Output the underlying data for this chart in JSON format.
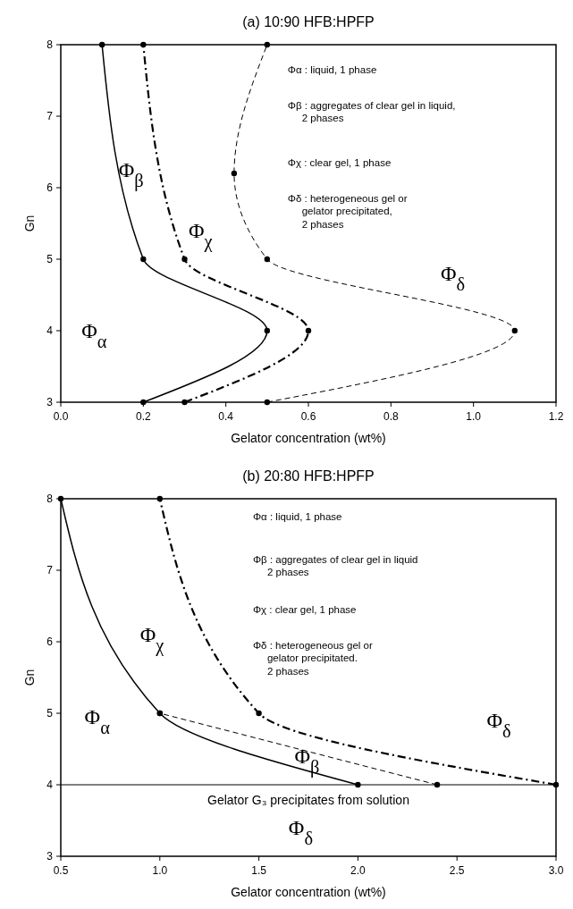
{
  "chart_data": [
    {
      "type": "line",
      "title": "(a) 10:90 HFB:HPFP",
      "xlabel": "Gelator concentration (wt%)",
      "ylabel": "Gn",
      "xlim": [
        0,
        1.2
      ],
      "xticks": [
        {
          "value": 0,
          "label": "0.0"
        },
        0.2,
        0.4,
        0.6,
        0.8,
        {
          "value": 1,
          "label": "1.0"
        },
        1.2
      ],
      "ylim": [
        3,
        8
      ],
      "yticks": [
        3,
        4,
        5,
        6,
        7,
        8
      ],
      "grid": false,
      "marker": "circle",
      "series": [
        {
          "color": "#000000",
          "line_style": "solid",
          "x": [
            0.2,
            0.5,
            0.2,
            0.1
          ],
          "values": [
            3,
            4,
            5,
            8
          ]
        },
        {
          "color": "#000000",
          "line_style": "dashdot",
          "x": [
            0.3,
            0.6,
            0.3,
            0.2
          ],
          "values": [
            3,
            4,
            5,
            8
          ]
        },
        {
          "color": "#000000",
          "line_style": "dashed",
          "x": [
            0.5,
            1.1,
            0.5,
            0.42,
            0.5
          ],
          "values": [
            3,
            4,
            5,
            6.2,
            8
          ]
        }
      ],
      "annotations": [
        "Φ$_{α}$",
        "Φ$_{β}$",
        "Φ$_{χ}$",
        "Φ$_{δ}$",
        "Φα  : liquid, 1 phase",
        "Φβ : aggregates of clear gel in liquid,\n2 phases",
        "Φχ : clear  gel, 1 phase",
        "Φδ : heterogeneous gel or\ngelator precipitated,\n2 phases"
      ]
    },
    {
      "type": "line",
      "title": "(b)  20:80 HFB:HPFP",
      "xlabel": "Gelator concentration (wt%)",
      "ylabel": "Gn",
      "xlim": [
        0.5,
        3.0
      ],
      "xticks": [
        0.5,
        {
          "value": 1,
          "label": "1.0"
        },
        1.5,
        {
          "value": 2,
          "label": "2.0"
        },
        2.5,
        {
          "value": 3,
          "label": "3.0"
        }
      ],
      "ylim": [
        3,
        8
      ],
      "yticks": [
        3,
        4,
        5,
        6,
        7,
        8
      ],
      "grid": false,
      "marker": "circle",
      "series": [
        {
          "color": "#000000",
          "line_style": "solid",
          "x": [
            2.0,
            1.0,
            0.5
          ],
          "values": [
            4,
            5,
            8
          ]
        },
        {
          "color": "#000000",
          "line_style": "dashed",
          "x": [
            2.4,
            1.0
          ],
          "values": [
            4,
            5
          ]
        },
        {
          "color": "#000000",
          "line_style": "dashdot",
          "x": [
            3.0,
            1.5,
            1.0
          ],
          "values": [
            4,
            5,
            8
          ]
        }
      ],
      "ref_lines": [
        {
          "axis": "y",
          "value": 4,
          "label": "Gelator G₃ precipitates from solution",
          "color": "#000000",
          "line_style": "solid"
        }
      ],
      "annotations": [
        "Φ$_{α}$",
        "Φ$_{χ}$",
        "Φ$_{β}$",
        "Φ$_{δ}$",
        "Φ$_{δ}$",
        "Φα  : liquid, 1 phase",
        "Φβ : aggregates of clear gel in liquid\n2 phases",
        "Φχ : clear  gel, 1 phase",
        "Φδ : heterogeneous gel or\ngelator precipitated.\n2 phases"
      ]
    }
  ]
}
